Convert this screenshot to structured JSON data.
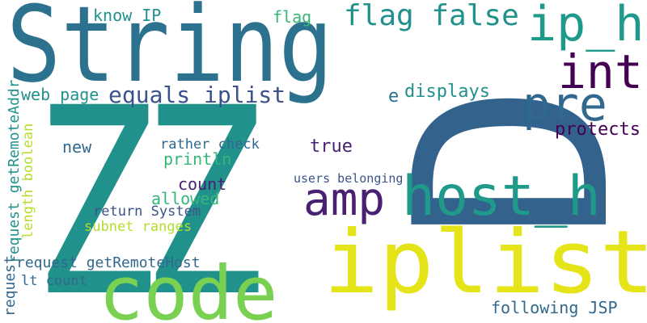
{
  "palette": {
    "teal_dark": "#2c728e",
    "blue_dark": "#33638d",
    "teal": "#21918c",
    "teal_mid": "#1f9a8a",
    "purple": "#482173",
    "purple_dark": "#440154",
    "indigo": "#3b528b",
    "green": "#35b779",
    "green_light": "#5ec962",
    "lime": "#7ad151",
    "yellow_green": "#b5de2b",
    "yellow": "#e5e419",
    "gray_blue": "#31688e"
  },
  "words": [
    {
      "text": "ZZ",
      "color": "teal"
    },
    {
      "text": "String",
      "color": "teal_dark"
    },
    {
      "text": "D",
      "color": "blue_dark"
    },
    {
      "text": "iplist",
      "color": "yellow"
    },
    {
      "text": "code",
      "color": "lime"
    },
    {
      "text": "host_h",
      "color": "teal_mid"
    },
    {
      "text": "amp",
      "color": "purple"
    },
    {
      "text": "ip_h",
      "color": "teal_mid"
    },
    {
      "text": "int",
      "color": "purple_dark"
    },
    {
      "text": "pre",
      "color": "gray_blue"
    },
    {
      "text": "flag false",
      "color": "teal"
    },
    {
      "text": "equals iplist",
      "color": "indigo"
    },
    {
      "text": "web page",
      "color": "teal"
    },
    {
      "text": "know IP",
      "color": "teal"
    },
    {
      "text": "flag",
      "color": "green"
    },
    {
      "text": "e",
      "color": "teal_dark"
    },
    {
      "text": "displays",
      "color": "teal"
    },
    {
      "text": "protects",
      "color": "purple_dark"
    },
    {
      "text": "true",
      "color": "purple"
    },
    {
      "text": "new",
      "color": "gray_blue"
    },
    {
      "text": "rather check",
      "color": "gray_blue"
    },
    {
      "text": "println",
      "color": "green"
    },
    {
      "text": "count",
      "color": "purple"
    },
    {
      "text": "allowed",
      "color": "green"
    },
    {
      "text": "users belonging",
      "color": "indigo"
    },
    {
      "text": "return System",
      "color": "indigo"
    },
    {
      "text": "subnet ranges",
      "color": "yellow_green"
    },
    {
      "text": "request getRemoteAddr",
      "color": "teal"
    },
    {
      "text": "length boolean",
      "color": "yellow_green"
    },
    {
      "text": "request getRemoteHost",
      "color": "gray_blue"
    },
    {
      "text": "request",
      "color": "gray_blue"
    },
    {
      "text": "lt count",
      "color": "gray_blue"
    },
    {
      "text": "following JSP",
      "color": "gray_blue"
    }
  ]
}
